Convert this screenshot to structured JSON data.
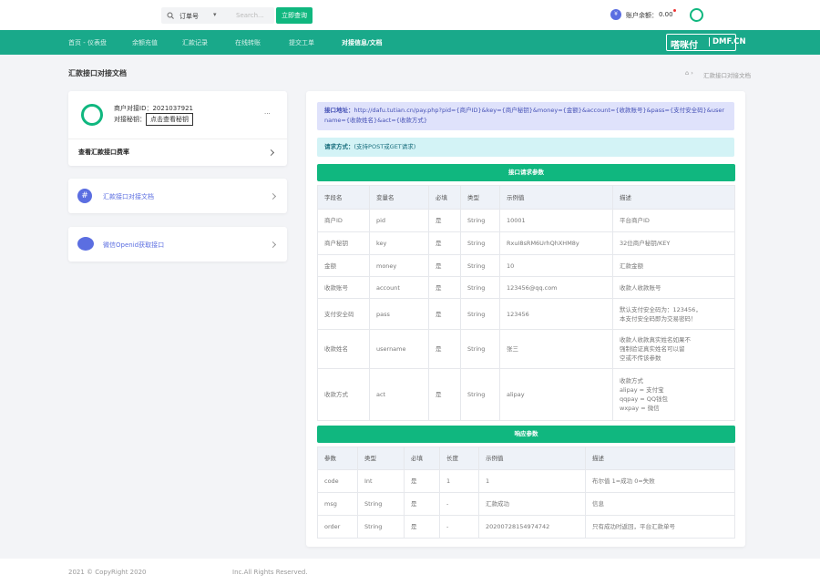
{
  "topbar": {
    "search_field": "订单号",
    "search_placeholder": "Search...",
    "search_button": "立即查询",
    "balance_label": "账户余额：",
    "balance_value": "0.00"
  },
  "nav": {
    "items": [
      "首页 - 仪表盘",
      "余额充值",
      "汇款记录",
      "在线转账",
      "提交工单",
      "对接信息/文档"
    ],
    "logo_text": "嗒咪付",
    "logo_domain": "DMF.CN"
  },
  "breadcrumb": {
    "title": "汇款接口对接文档",
    "current": "汇款接口对接文档"
  },
  "sidebar": {
    "merchant_id": "商户对接ID：2021037921",
    "key_label": "对接秘钥：",
    "key_button": "点击查看秘钥",
    "more": "...",
    "rate_link": "查看汇款接口费率",
    "doc_link": "汇款接口对接文档",
    "openid_link": "微信Openid获取接口"
  },
  "content": {
    "api_url_label": "接口地址：",
    "api_url": "http://dafu.tutian.cn/pay.php?pid={商户ID}&key={商户秘钥}&money={金额}&account={收款账号}&pass={支付安全码}&username={收款姓名}&act={收款方式}",
    "method_label": "请求方式：",
    "method": "(支持POST或GET请求)",
    "request_table": {
      "title": "接口请求参数",
      "columns": [
        "字段名",
        "变量名",
        "必填",
        "类型",
        "示例值",
        "描述"
      ],
      "rows": [
        [
          "商户ID",
          "pid",
          "是",
          "String",
          "10001",
          "平台商户ID"
        ],
        [
          "商户秘钥",
          "key",
          "是",
          "String",
          "RxuI8sRM6UrhQhXHM8y",
          "32位商户秘钥/KEY"
        ],
        [
          "金额",
          "money",
          "是",
          "String",
          "10",
          "汇款金额"
        ],
        [
          "收款账号",
          "account",
          "是",
          "String",
          "123456@qq.com",
          "收款人收款账号"
        ],
        [
          "支付安全码",
          "pass",
          "是",
          "String",
          "123456",
          [
            "默认支付安全码为：123456，",
            "本支付安全码即为交易密码！"
          ]
        ],
        [
          "收款姓名",
          "username",
          "是",
          "String",
          "张三",
          [
            "收款人收款真实姓名如果不",
            "强制验证真实姓名可以留",
            "空或不传该参数"
          ]
        ],
        [
          "收款方式",
          "act",
          "是",
          "String",
          "alipay",
          [
            "收款方式",
            "alipay = 支付宝",
            "qqpay = QQ钱包",
            "wxpay = 微信"
          ]
        ]
      ]
    },
    "response_table": {
      "title": "响应参数",
      "columns": [
        "参数",
        "类型",
        "必填",
        "长度",
        "示例值",
        "描述"
      ],
      "rows": [
        [
          "code",
          "Int",
          "是",
          "1",
          "1",
          "布尔值 1=成功 0=失败"
        ],
        [
          "msg",
          "String",
          "是",
          "-",
          "汇款成功",
          "信息"
        ],
        [
          "order",
          "String",
          "是",
          "-",
          "20200728154974742",
          "只有成功时返回，平台汇款单号"
        ]
      ]
    }
  },
  "footer": {
    "copyright": "2021 © CopyRight 2020",
    "rights": "Inc.All Rights Reserved."
  }
}
